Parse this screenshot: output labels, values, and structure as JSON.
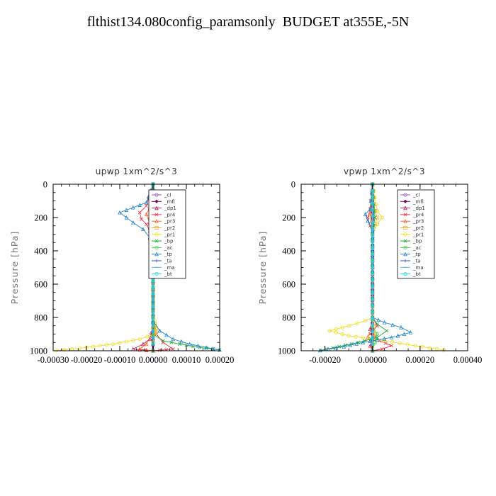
{
  "figure": {
    "title": "flthist134.080config_paramsonly  BUDGET at355E,-5N"
  },
  "chart_data": [
    {
      "type": "line",
      "title": "upwp   1xm^2/s^3",
      "ylabel": "Pressure [hPa]",
      "xlim": [
        -0.0003,
        0.0002
      ],
      "ylim": [
        1000,
        0
      ],
      "y_inverted": true,
      "xticks": [
        "-0.00030",
        "-0.00020",
        "-0.00010",
        "0.00000",
        "0.00010",
        "0.00020"
      ],
      "yticks": [
        "0",
        "200",
        "400",
        "600",
        "800",
        "1000"
      ],
      "legend_position": "top-right",
      "legend": [
        "_cl",
        "_mfl",
        "_dp1",
        "_pr4",
        "_pr3",
        "_pr2",
        "_pr1",
        "_bp",
        "_ac",
        "_tp",
        "_ta",
        "_ma",
        "_bt"
      ],
      "series": [
        {
          "name": "_cl",
          "color": "#9966cc",
          "x": [
            0,
            0,
            0,
            0,
            0,
            0,
            0,
            0,
            0,
            0,
            0
          ],
          "y": [
            0,
            100,
            200,
            300,
            400,
            500,
            600,
            700,
            800,
            900,
            1000
          ]
        },
        {
          "name": "_mfl",
          "color": "#800060",
          "x": [
            0,
            0,
            0,
            0,
            0,
            0,
            0,
            0,
            0,
            0,
            0
          ],
          "y": [
            0,
            100,
            200,
            300,
            400,
            500,
            600,
            700,
            800,
            900,
            1000
          ]
        },
        {
          "name": "_dp1",
          "color": "#cc2255",
          "x": [
            0,
            0,
            5e-06,
            -1e-05,
            0,
            0,
            0,
            0,
            0,
            -1e-05,
            -3e-05,
            -6e-05,
            0
          ],
          "y": [
            0,
            100,
            150,
            200,
            250,
            300,
            500,
            700,
            850,
            930,
            960,
            990,
            1000
          ]
        },
        {
          "name": "_pr4",
          "color": "#ee3344",
          "x": [
            0,
            -2e-05,
            -4e-05,
            -3.5e-05,
            -2e-05,
            -1e-05,
            0,
            0,
            1e-05,
            3e-05,
            6e-05,
            0
          ],
          "y": [
            0,
            130,
            170,
            210,
            240,
            280,
            350,
            800,
            900,
            950,
            990,
            1000
          ]
        },
        {
          "name": "_pr3",
          "color": "#ff6633",
          "x": [
            0,
            -1e-05,
            -2e-05,
            -1e-05,
            0,
            0,
            0,
            -2e-05,
            -4e-05,
            0
          ],
          "y": [
            0,
            140,
            180,
            230,
            300,
            700,
            900,
            960,
            990,
            1000
          ]
        },
        {
          "name": "_pr2",
          "color": "#ffaa33",
          "x": [
            0,
            1e-05,
            2e-05,
            1e-05,
            0,
            0,
            1e-05,
            0,
            0
          ],
          "y": [
            0,
            150,
            200,
            260,
            350,
            800,
            880,
            950,
            1000
          ]
        },
        {
          "name": "_pr1",
          "color": "#eedd22",
          "x": [
            0,
            5e-06,
            2e-05,
            3e-05,
            1.5e-05,
            0,
            0,
            5e-06,
            1e-05,
            5e-06,
            -4e-05,
            -0.00012,
            -0.00022,
            -0.00029
          ],
          "y": [
            0,
            100,
            150,
            190,
            240,
            300,
            750,
            820,
            860,
            900,
            930,
            960,
            985,
            998
          ]
        },
        {
          "name": "_bp",
          "color": "#22aa33",
          "x": [
            0,
            2e-05,
            4e-05,
            3e-05,
            1e-05,
            0,
            0,
            0,
            3e-05,
            8e-05,
            0.00014,
            0.0002
          ],
          "y": [
            0,
            140,
            180,
            220,
            270,
            330,
            800,
            900,
            940,
            960,
            980,
            995
          ]
        },
        {
          "name": "_ac",
          "color": "#44dd55",
          "x": [
            0,
            5e-06,
            1e-05,
            0,
            0,
            0,
            0
          ],
          "y": [
            0,
            150,
            200,
            260,
            700,
            950,
            1000
          ]
        },
        {
          "name": "_tp",
          "color": "#2288cc",
          "x": [
            0,
            -2e-05,
            -6e-05,
            -0.0001,
            -8e-05,
            -6e-05,
            -3e-05,
            -1e-05,
            0,
            0,
            2e-05,
            6e-05,
            0.00011,
            0.00016,
            0.0002
          ],
          "y": [
            0,
            110,
            140,
            170,
            200,
            230,
            270,
            320,
            380,
            820,
            880,
            930,
            960,
            980,
            995
          ]
        },
        {
          "name": "_ta",
          "color": "#3355cc",
          "x": [
            0,
            5e-06,
            0,
            0,
            0
          ],
          "y": [
            0,
            200,
            400,
            800,
            1000
          ]
        },
        {
          "name": "_ma",
          "color": "#55bbdd",
          "x": [
            0,
            0,
            0
          ],
          "y": [
            0,
            500,
            1000
          ]
        },
        {
          "name": "_bt",
          "color": "#22dddd",
          "x": [
            0,
            0,
            0
          ],
          "y": [
            0,
            500,
            1000
          ]
        }
      ]
    },
    {
      "type": "line",
      "title": "vpwp   1xm^2/s^3",
      "ylabel": "Pressure [hPa]",
      "xlim": [
        -0.0003,
        0.0004
      ],
      "ylim": [
        1000,
        0
      ],
      "y_inverted": true,
      "xticks": [
        "-0.00020",
        "0.00000",
        "0.00020",
        "0.00040"
      ],
      "yticks": [
        "0",
        "200",
        "400",
        "600",
        "800",
        "1000"
      ],
      "legend_position": "top-right",
      "legend": [
        "_cl",
        "_mfl",
        "_dp1",
        "_pr4",
        "_pr3",
        "_pr2",
        "_pr1",
        "_bp",
        "_ac",
        "_tp",
        "_ta",
        "_ma",
        "_bt"
      ],
      "series": [
        {
          "name": "_cl",
          "color": "#9966cc",
          "x": [
            0,
            0,
            0,
            0,
            0,
            0,
            0,
            0,
            0,
            0,
            0
          ],
          "y": [
            0,
            100,
            200,
            300,
            400,
            500,
            600,
            700,
            800,
            900,
            1000
          ]
        },
        {
          "name": "_mfl",
          "color": "#800060",
          "x": [
            0,
            0,
            0,
            0,
            0,
            0,
            0,
            0,
            0,
            0,
            0
          ],
          "y": [
            0,
            100,
            200,
            300,
            400,
            500,
            600,
            700,
            800,
            900,
            1000
          ]
        },
        {
          "name": "_dp1",
          "color": "#cc2255",
          "x": [
            0,
            0,
            0,
            0,
            -1e-05,
            1e-05,
            -1e-05,
            0
          ],
          "y": [
            0,
            200,
            500,
            800,
            870,
            920,
            970,
            1000
          ]
        },
        {
          "name": "_pr4",
          "color": "#ee3344",
          "x": [
            0,
            -1e-05,
            -2e-05,
            -1e-05,
            0,
            0,
            2e-05,
            -1e-05,
            3e-05,
            8e-05,
            4e-05,
            0
          ],
          "y": [
            0,
            150,
            200,
            250,
            300,
            800,
            850,
            900,
            940,
            970,
            990,
            1000
          ]
        },
        {
          "name": "_pr3",
          "color": "#ff6633",
          "x": [
            0,
            -1e-05,
            0,
            0,
            -2e-05,
            0,
            0
          ],
          "y": [
            0,
            180,
            260,
            850,
            920,
            970,
            1000
          ]
        },
        {
          "name": "_pr2",
          "color": "#ffaa33",
          "x": [
            0,
            1e-05,
            2e-05,
            1e-05,
            0,
            0,
            1e-05,
            0
          ],
          "y": [
            0,
            160,
            200,
            240,
            300,
            800,
            900,
            1000
          ]
        },
        {
          "name": "_pr1",
          "color": "#eedd22",
          "x": [
            0,
            2e-05,
            4e-05,
            2e-05,
            0,
            0,
            -3e-05,
            -0.0001,
            -0.00018,
            -0.0001,
            5e-05,
            0.00018,
            0.0003
          ],
          "y": [
            0,
            160,
            200,
            240,
            300,
            800,
            820,
            850,
            880,
            910,
            940,
            970,
            995
          ]
        },
        {
          "name": "_bp",
          "color": "#22aa33",
          "x": [
            0,
            1e-05,
            0,
            0,
            2e-05,
            6e-05,
            2e-05,
            -6e-05,
            -0.00014,
            -0.00022
          ],
          "y": [
            0,
            200,
            300,
            800,
            840,
            880,
            920,
            950,
            975,
            998
          ]
        },
        {
          "name": "_ac",
          "color": "#44dd55",
          "x": [
            0,
            5e-06,
            0,
            0,
            2e-05,
            0
          ],
          "y": [
            0,
            200,
            300,
            850,
            900,
            1000
          ]
        },
        {
          "name": "_tp",
          "color": "#2288cc",
          "x": [
            0,
            -1e-05,
            -3e-05,
            -2e-05,
            0,
            0,
            5e-05,
            0.00012,
            0.00016,
            8e-05,
            -4e-05,
            -0.00012,
            -0.00022
          ],
          "y": [
            0,
            150,
            180,
            220,
            280,
            800,
            830,
            860,
            890,
            920,
            950,
            975,
            998
          ]
        },
        {
          "name": "_ta",
          "color": "#3355cc",
          "x": [
            0,
            5e-06,
            0,
            0,
            0
          ],
          "y": [
            0,
            200,
            400,
            800,
            1000
          ]
        },
        {
          "name": "_ma",
          "color": "#55bbdd",
          "x": [
            0,
            0,
            0
          ],
          "y": [
            0,
            500,
            1000
          ]
        },
        {
          "name": "_bt",
          "color": "#22dddd",
          "x": [
            0,
            0,
            0
          ],
          "y": [
            0,
            500,
            1000
          ]
        }
      ]
    }
  ]
}
